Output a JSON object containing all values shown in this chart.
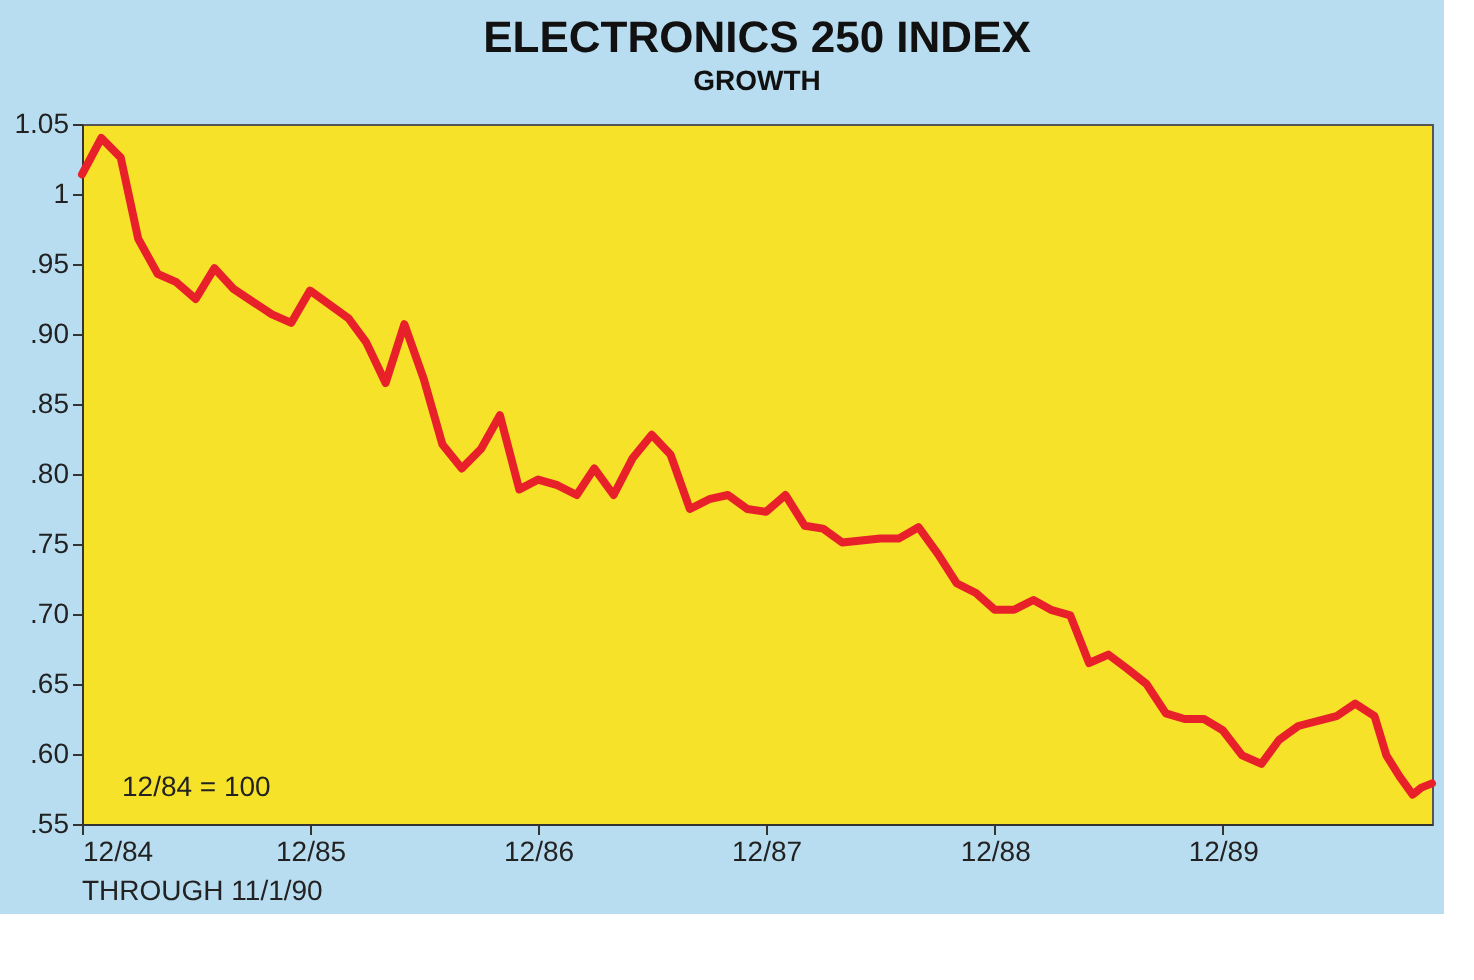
{
  "chart_data": {
    "type": "line",
    "title": "ELECTRONICS 250 INDEX",
    "subtitle": "GROWTH",
    "x": [
      "1984-12",
      "1985-01",
      "1985-02",
      "1985-03",
      "1985-04",
      "1985-05",
      "1985-06",
      "1985-07",
      "1985-08",
      "1985-10",
      "1985-11",
      "1985-12",
      "1986-02",
      "1986-03",
      "1986-04",
      "1986-05",
      "1986-06",
      "1986-07",
      "1986-08",
      "1986-09",
      "1986-10",
      "1986-11",
      "1986-12",
      "1987-01",
      "1987-02",
      "1987-03",
      "1987-04",
      "1987-05",
      "1987-06",
      "1987-07",
      "1987-08",
      "1987-09",
      "1987-10",
      "1987-11",
      "1987-12",
      "1988-01",
      "1988-02",
      "1988-03",
      "1988-04",
      "1988-06",
      "1988-07",
      "1988-08",
      "1988-09",
      "1988-10",
      "1988-11",
      "1988-12",
      "1989-01",
      "1989-02",
      "1989-03",
      "1989-04",
      "1989-05",
      "1989-06",
      "1989-07",
      "1989-08",
      "1989-09",
      "1989-10",
      "1989-11",
      "1989-12",
      "1990-01",
      "1990-02",
      "1990-03",
      "1990-04",
      "1990-06",
      "1990-07",
      "1990-08",
      "1990-08-20",
      "1990-09-10",
      "1990-10-01",
      "1990-10-15",
      "1990-11-01"
    ],
    "series": [
      {
        "color": "#e8202a",
        "values": [
          1.014,
          1.04,
          1.026,
          0.968,
          0.943,
          0.937,
          0.925,
          0.947,
          0.932,
          0.914,
          0.908,
          0.931,
          0.911,
          0.894,
          0.865,
          0.907,
          0.868,
          0.821,
          0.804,
          0.818,
          0.842,
          0.789,
          0.796,
          0.792,
          0.785,
          0.804,
          0.785,
          0.811,
          0.828,
          0.814,
          0.775,
          0.782,
          0.785,
          0.775,
          0.773,
          0.785,
          0.763,
          0.761,
          0.751,
          0.754,
          0.754,
          0.762,
          0.743,
          0.722,
          0.715,
          0.703,
          0.703,
          0.71,
          0.703,
          0.699,
          0.665,
          0.671,
          0.661,
          0.65,
          0.629,
          0.625,
          0.625,
          0.617,
          0.599,
          0.593,
          0.61,
          0.62,
          0.627,
          0.636,
          0.627,
          0.599,
          0.584,
          0.571,
          0.576,
          0.579
        ]
      }
    ],
    "xlim": [
      "1984-12",
      "1990-11-01"
    ],
    "xticks": [
      {
        "value": "1984-12",
        "label": "12/84"
      },
      {
        "value": "1985-12",
        "label": "12/85"
      },
      {
        "value": "1986-12",
        "label": "12/86"
      },
      {
        "value": "1987-12",
        "label": "12/87"
      },
      {
        "value": "1988-12",
        "label": "12/88"
      },
      {
        "value": "1989-12",
        "label": "12/89"
      }
    ],
    "ylim": [
      0.55,
      1.05
    ],
    "yticks": [
      1.05,
      1,
      {
        "value": 0.95,
        "label": ".95"
      },
      {
        "value": 0.9,
        "label": ".90"
      },
      {
        "value": 0.85,
        "label": ".85"
      },
      {
        "value": 0.8,
        "label": ".80"
      },
      {
        "value": 0.75,
        "label": ".75"
      },
      {
        "value": 0.7,
        "label": ".70"
      },
      {
        "value": 0.65,
        "label": ".65"
      },
      {
        "value": 0.6,
        "label": ".60"
      },
      {
        "value": 0.55,
        "label": ".55"
      }
    ],
    "grid": false,
    "marker": "none",
    "line_style": "solid",
    "legend": false,
    "annotations": [
      "12/84 = 100",
      "THROUGH 11/1/90"
    ]
  }
}
